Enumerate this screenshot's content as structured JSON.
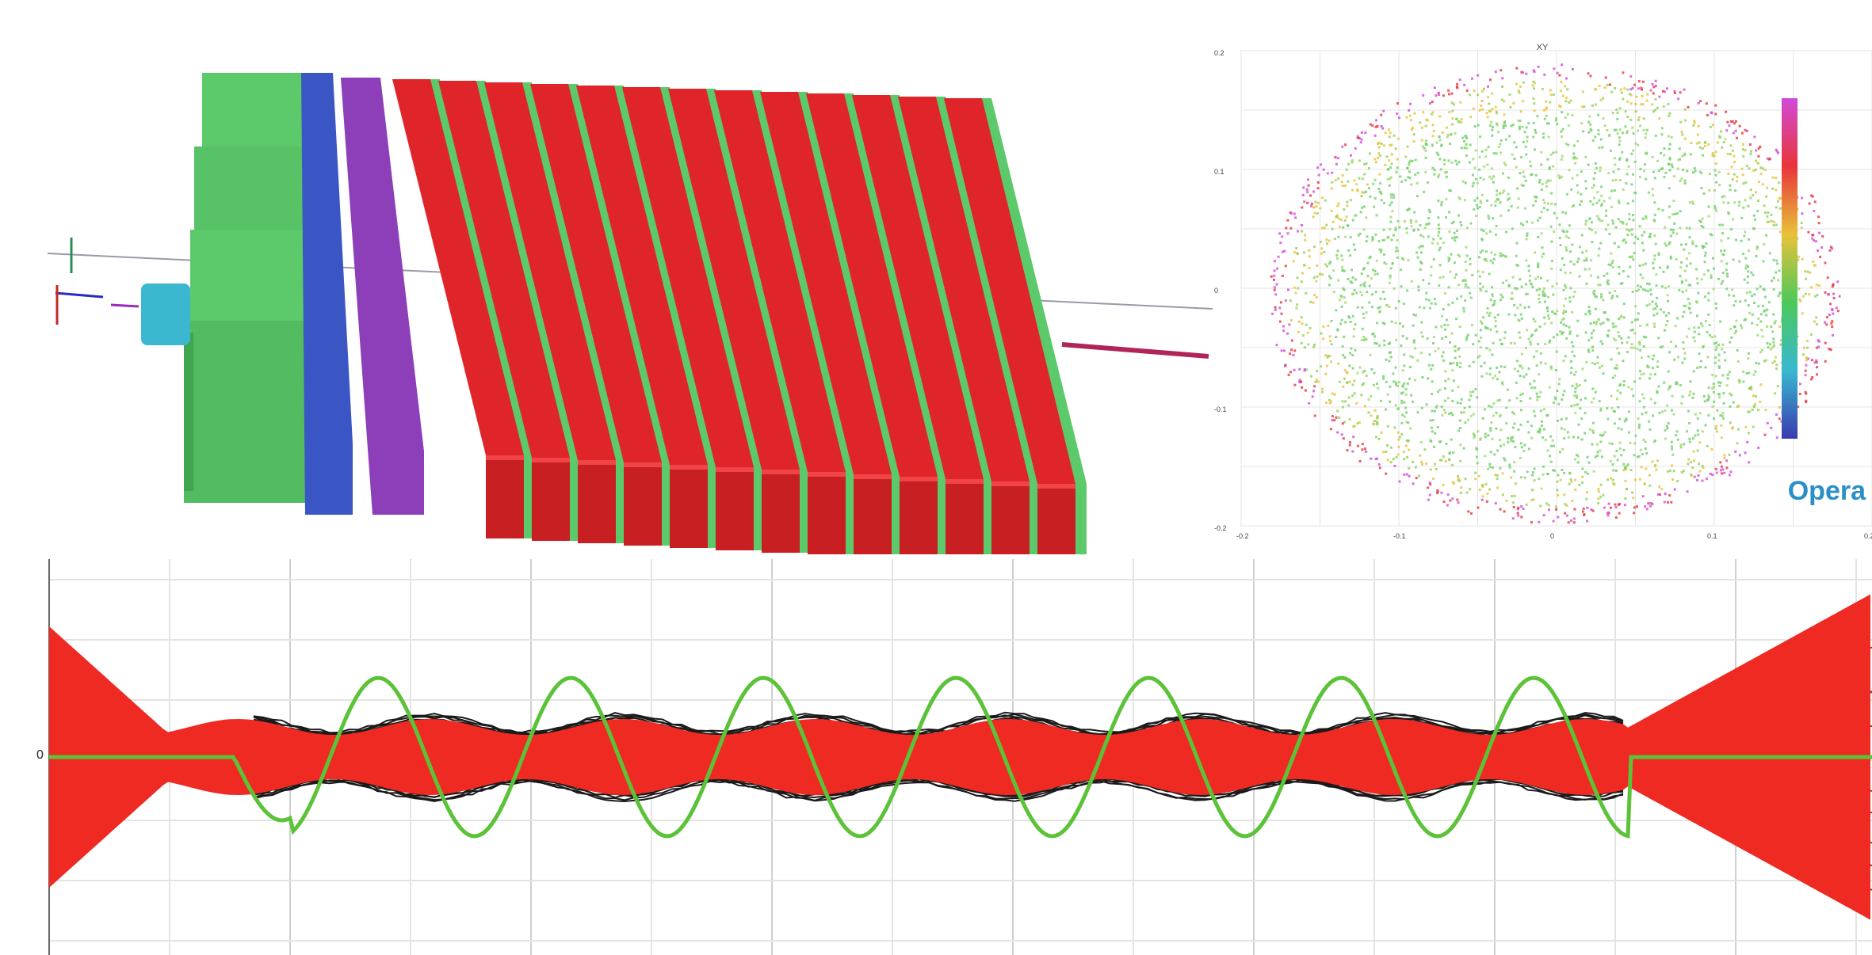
{
  "xy_plot": {
    "title": "XY",
    "y_ticks": [
      "0.2",
      "0.1",
      "0",
      "-0.1",
      "-0.2"
    ],
    "x_ticks": [
      "-0.2",
      "-0.1",
      "0",
      "0.1",
      "0.2"
    ],
    "logo": "Opera"
  },
  "trace_plot": {
    "y_zero_label": "0"
  },
  "colors": {
    "magnet_green": "#5cc96a",
    "magnet_blue": "#3a56c4",
    "magnet_purple": "#8c3fb8",
    "electrode_red": "#e0252a",
    "beam_envelope": "#ee2a22",
    "field_curve": "#5cc238",
    "grid": "#d8d8d8"
  }
}
